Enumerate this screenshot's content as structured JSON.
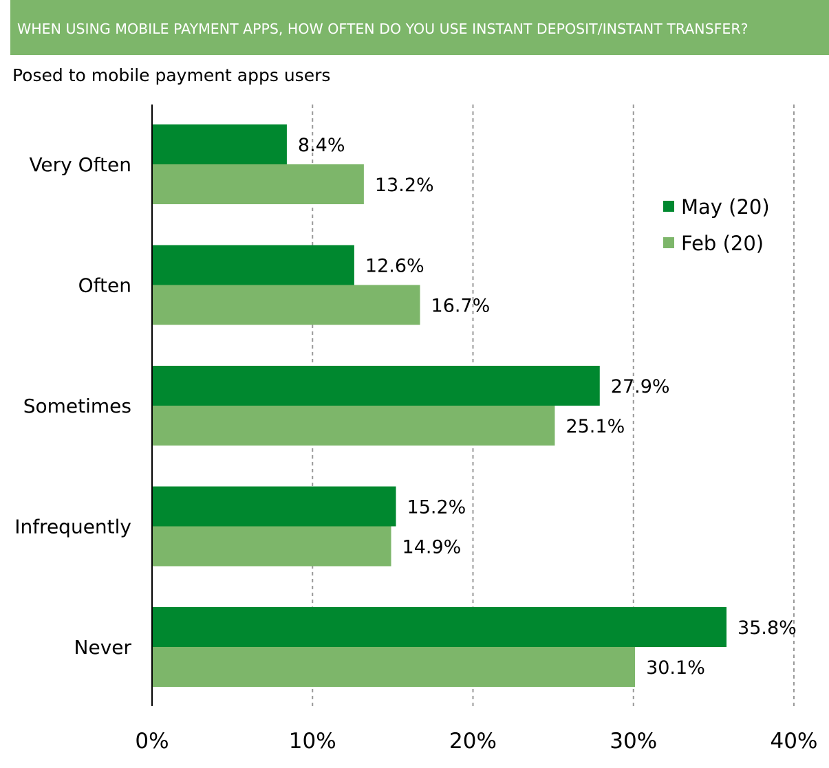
{
  "header": {
    "banner_title": "WHEN USING MOBILE PAYMENT APPS, HOW OFTEN DO YOU USE INSTANT DEPOSIT/INSTANT TRANSFER?",
    "subtitle": "Posed to mobile payment apps users"
  },
  "chart_data": {
    "type": "bar",
    "orientation": "horizontal",
    "categories": [
      "Very Often",
      "Often",
      "Sometimes",
      "Infrequently",
      "Never"
    ],
    "series": [
      {
        "name": "May (20)",
        "values": [
          8.4,
          12.6,
          27.9,
          15.2,
          35.8
        ],
        "labels": [
          "8.4%",
          "12.6%",
          "27.9%",
          "15.2%",
          "35.8%"
        ],
        "color": "#00882f"
      },
      {
        "name": "Feb (20)",
        "values": [
          13.2,
          16.7,
          25.1,
          14.9,
          30.1
        ],
        "labels": [
          "13.2%",
          "16.7%",
          "25.1%",
          "14.9%",
          "30.1%"
        ],
        "color": "#7db66a"
      }
    ],
    "x_ticks": [
      "0%",
      "10%",
      "20%",
      "30%",
      "40%"
    ],
    "xlim": [
      0,
      40
    ],
    "grid": "vertical dashed",
    "legend_position": "top-right"
  }
}
